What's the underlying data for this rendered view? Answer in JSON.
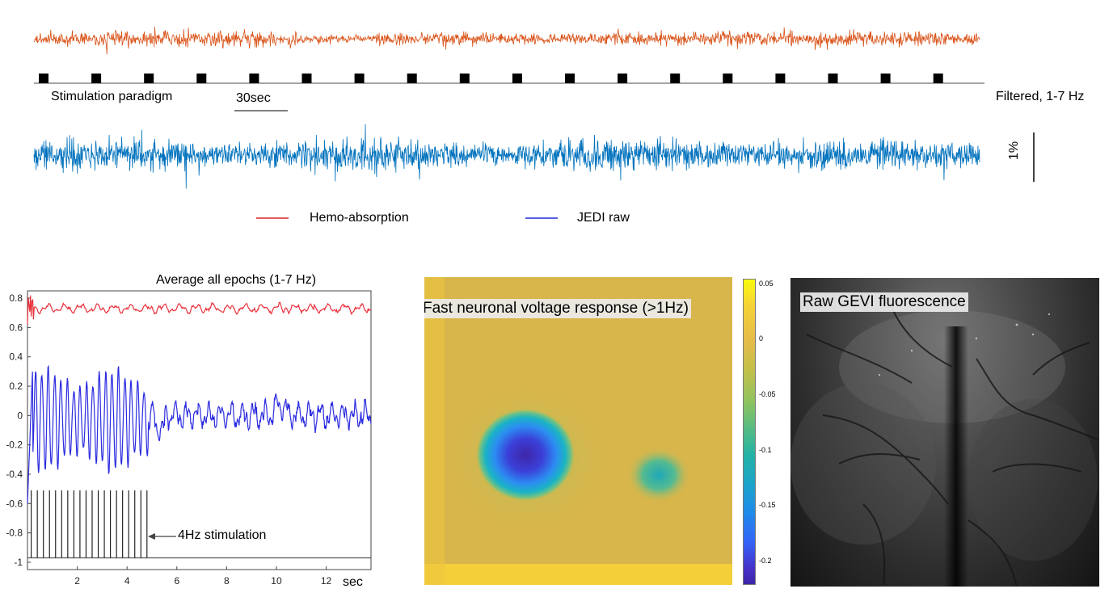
{
  "colors": {
    "hemo_trace": "#d95319",
    "jedi_trace": "#0072bd",
    "legend_hemo": "#d62728",
    "legend_jedi": "#1f2bd6",
    "avg_hemo": "#e8323c",
    "avg_jedi": "#2b2be0",
    "stim": "#111111"
  },
  "top_panel": {
    "stimulation_label": "Stimulation paradigm",
    "scale_time_label": "30sec",
    "filtered_label": "Filtered, 1-7 Hz",
    "scale_amp_label": "1%",
    "stim_blocks": 18,
    "legend": [
      {
        "label": "Hemo-absorption",
        "color_key": "legend_hemo"
      },
      {
        "label": "JEDI raw",
        "color_key": "legend_jedi"
      }
    ]
  },
  "avg_panel": {
    "annotation": "4Hz stimulation"
  },
  "heatmap_panel": {
    "title": "Fast neuronal voltage response (>1Hz)",
    "colorbar_ticks": [
      "0.05",
      "0",
      "-0.05",
      "-0.1",
      "-0.15",
      "-0.2"
    ]
  },
  "image_panel": {
    "title": "Raw GEVI fluorescence"
  },
  "chart_data": [
    {
      "type": "line",
      "title": "",
      "series": [
        {
          "name": "Hemo-absorption",
          "kind": "noisy trace, orange"
        },
        {
          "name": "JEDI raw",
          "kind": "noisy trace, blue"
        }
      ],
      "stimulation_blocks": 18,
      "scale_bars": {
        "time": "30sec",
        "amplitude": "1%"
      }
    },
    {
      "type": "line",
      "title": "Average all epochs (1-7 Hz)",
      "xlabel": "sec",
      "ylabel": "",
      "xlim": [
        0,
        13.8
      ],
      "ylim": [
        -1.05,
        0.85
      ],
      "xticks": [
        2,
        4,
        6,
        8,
        10,
        12
      ],
      "yticks": [
        0.8,
        0.6,
        0.4,
        0.2,
        0,
        -0.2,
        -0.4,
        -0.6,
        -0.8,
        -1
      ],
      "series": [
        {
          "name": "",
          "color_key": "avg_hemo",
          "baseline": 0.73,
          "x": [
            0,
            0.2,
            0.5,
            1,
            2,
            3,
            4,
            5,
            6,
            7,
            8,
            9,
            10,
            11,
            12,
            13,
            13.8
          ],
          "y": [
            0.62,
            0.8,
            0.74,
            0.77,
            0.72,
            0.73,
            0.74,
            0.72,
            0.7,
            0.74,
            0.72,
            0.73,
            0.76,
            0.75,
            0.76,
            0.75,
            0.72
          ]
        },
        {
          "name": "",
          "color_key": "avg_jedi",
          "x": [
            0,
            0.5,
            1,
            1.5,
            2,
            2.5,
            3,
            3.5,
            4,
            4.5,
            4.8,
            5.2,
            6,
            7,
            8,
            9,
            10,
            11,
            12,
            13,
            13.8
          ],
          "y": [
            -0.6,
            0.3,
            -0.3,
            0.3,
            -0.35,
            0.3,
            -0.35,
            0.32,
            -0.4,
            0.35,
            0.1,
            -0.1,
            0.02,
            -0.05,
            0.05,
            -0.08,
            0.12,
            -0.02,
            0.05,
            -0.02,
            -0.05
          ]
        },
        {
          "name": "4Hz stimulation",
          "color_key": "stim",
          "pulses": 20,
          "start": 0.15,
          "end": 4.8,
          "base": -0.97,
          "top": -0.51
        }
      ]
    },
    {
      "type": "heatmap",
      "title": "Fast neuronal voltage response (>1Hz)",
      "colorbar": {
        "min": -0.22,
        "max": 0.055,
        "ticks": [
          0.05,
          0,
          -0.05,
          -0.1,
          -0.15,
          -0.2
        ]
      },
      "hotspots": [
        {
          "peak": -0.2
        },
        {
          "peak": -0.1
        }
      ]
    }
  ]
}
